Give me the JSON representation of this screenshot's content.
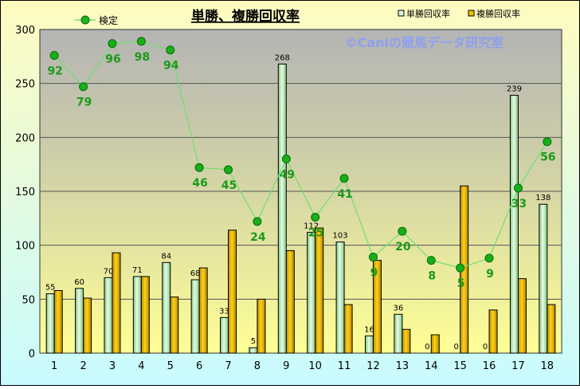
{
  "chart_data": {
    "type": "bar",
    "title": "単勝、複勝回収率",
    "watermark": "©Caniの競馬データ研究室",
    "categories": [
      "1",
      "2",
      "3",
      "4",
      "5",
      "6",
      "7",
      "8",
      "9",
      "10",
      "11",
      "12",
      "13",
      "14",
      "15",
      "16",
      "17",
      "18"
    ],
    "ylim": [
      0,
      300
    ],
    "yticks": [
      0,
      50,
      100,
      150,
      200,
      250,
      300
    ],
    "grid": true,
    "legend_position": "top",
    "series": [
      {
        "name": "単勝回収率",
        "kind": "bar",
        "color": "#b8e6b8",
        "values": [
          55,
          60,
          70,
          71,
          84,
          68,
          33,
          5,
          268,
          112,
          103,
          16,
          36,
          0,
          0,
          0,
          239,
          138
        ]
      },
      {
        "name": "複勝回収率",
        "kind": "bar",
        "color": "#e8b400",
        "values": [
          58,
          51,
          93,
          71,
          52,
          79,
          114,
          50,
          95,
          116,
          45,
          86,
          22,
          17,
          155,
          40,
          69,
          45
        ]
      },
      {
        "name": "検定",
        "kind": "line",
        "color": "#1a9a1a",
        "values": [
          276,
          247,
          287,
          289,
          281,
          172,
          170,
          122,
          180,
          126,
          162,
          89,
          113,
          86,
          79,
          88,
          153,
          196
        ]
      }
    ],
    "bar_labels": [
      "55",
      "60",
      "70",
      "71",
      "84",
      "68",
      "33",
      "5",
      "268",
      "112",
      "103",
      "16",
      "36",
      "0",
      "0",
      "0",
      "239",
      "138"
    ],
    "point_labels": [
      "92",
      "79",
      "96",
      "98",
      "94",
      "46",
      "45",
      "24",
      "49",
      "25",
      "41",
      "9",
      "20",
      "8",
      "5",
      "9",
      "33",
      "56"
    ]
  }
}
